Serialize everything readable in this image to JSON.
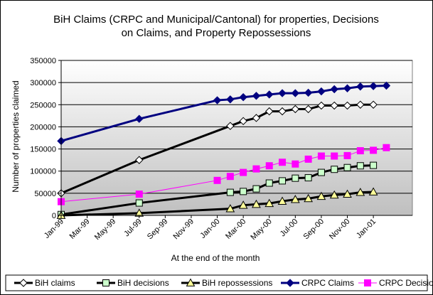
{
  "chart_data": {
    "type": "line",
    "title": "BiH Claims (CRPC and Municipal/Cantonal) for properties, Decisions on Claims, and Property Repossessions",
    "title_lines": [
      "BiH Claims (CRPC and Municipal/Cantonal) for properties, Decisions",
      "on Claims, and Property Repossessions"
    ],
    "xlabel": "At the end of the month",
    "ylabel": "Number of properties claimed",
    "ylim": [
      0,
      350000
    ],
    "xlim": [
      "1999-01",
      "2001-04"
    ],
    "y_ticks": [
      "0",
      "50000",
      "100000",
      "150000",
      "200000",
      "250000",
      "300000",
      "350000"
    ],
    "x_ticks": [
      "Jan-99",
      "Mar-99",
      "May-99",
      "Jul-99",
      "Sep-99",
      "Nov-99",
      "Jan-00",
      "Mar-00",
      "May-00",
      "Jul-00",
      "Sep-00",
      "Nov-00",
      "Jan-01"
    ],
    "grid": true,
    "legend_position": "bottom",
    "plot_background": "gradient-gray",
    "series": [
      {
        "name": "BiH claims",
        "color": "#000000",
        "marker": "diamond",
        "marker_fill": "#ffffff",
        "x": [
          "1999-01",
          "1999-07",
          "2000-02",
          "2000-03",
          "2000-04",
          "2000-05",
          "2000-06",
          "2000-07",
          "2000-08",
          "2000-09",
          "2000-10",
          "2000-11",
          "2000-12",
          "2001-01"
        ],
        "values": [
          50000,
          125000,
          202000,
          213000,
          220000,
          235000,
          235000,
          240000,
          240000,
          248000,
          248000,
          248000,
          250000,
          250000
        ]
      },
      {
        "name": "BiH decisions",
        "color": "#000000",
        "marker": "square",
        "marker_fill": "#ccffcc",
        "x": [
          "1999-01",
          "1999-07",
          "2000-02",
          "2000-03",
          "2000-04",
          "2000-05",
          "2000-06",
          "2000-07",
          "2000-08",
          "2000-09",
          "2000-10",
          "2000-11",
          "2000-12",
          "2001-01"
        ],
        "values": [
          2000,
          28000,
          52000,
          54000,
          60000,
          73000,
          78000,
          84000,
          85000,
          97000,
          104000,
          108000,
          112000,
          113000
        ]
      },
      {
        "name": "BiH repossessions",
        "color": "#000000",
        "marker": "triangle",
        "marker_fill": "#ffff99",
        "x": [
          "1999-01",
          "1999-07",
          "2000-02",
          "2000-03",
          "2000-04",
          "2000-05",
          "2000-06",
          "2000-07",
          "2000-08",
          "2000-09",
          "2000-10",
          "2000-11",
          "2000-12",
          "2001-01"
        ],
        "values": [
          0,
          5000,
          15000,
          23000,
          25000,
          27000,
          32000,
          36000,
          38000,
          43000,
          46000,
          48000,
          52000,
          53000
        ]
      },
      {
        "name": "CRPC Claims",
        "color": "#000080",
        "marker": "diamond",
        "marker_fill": "#000080",
        "x": [
          "1999-01",
          "1999-07",
          "2000-01",
          "2000-02",
          "2000-03",
          "2000-04",
          "2000-05",
          "2000-06",
          "2000-07",
          "2000-08",
          "2000-09",
          "2000-10",
          "2000-11",
          "2000-12",
          "2001-01",
          "2001-02"
        ],
        "values": [
          168000,
          218000,
          260000,
          262000,
          267000,
          270000,
          273000,
          276000,
          276000,
          277000,
          280000,
          285000,
          287000,
          291000,
          292000,
          293000
        ]
      },
      {
        "name": "CRPC Decisions",
        "color": "#ff00ff",
        "marker": "square",
        "marker_fill": "#ff00ff",
        "x": [
          "1999-01",
          "1999-07",
          "2000-01",
          "2000-02",
          "2000-03",
          "2000-04",
          "2000-05",
          "2000-06",
          "2000-07",
          "2000-08",
          "2000-09",
          "2000-10",
          "2000-11",
          "2000-12",
          "2001-01",
          "2001-02"
        ],
        "values": [
          31000,
          48000,
          79000,
          88000,
          97000,
          105000,
          112000,
          120000,
          116000,
          127000,
          134000,
          134000,
          135000,
          146000,
          147000,
          153000
        ]
      }
    ]
  }
}
